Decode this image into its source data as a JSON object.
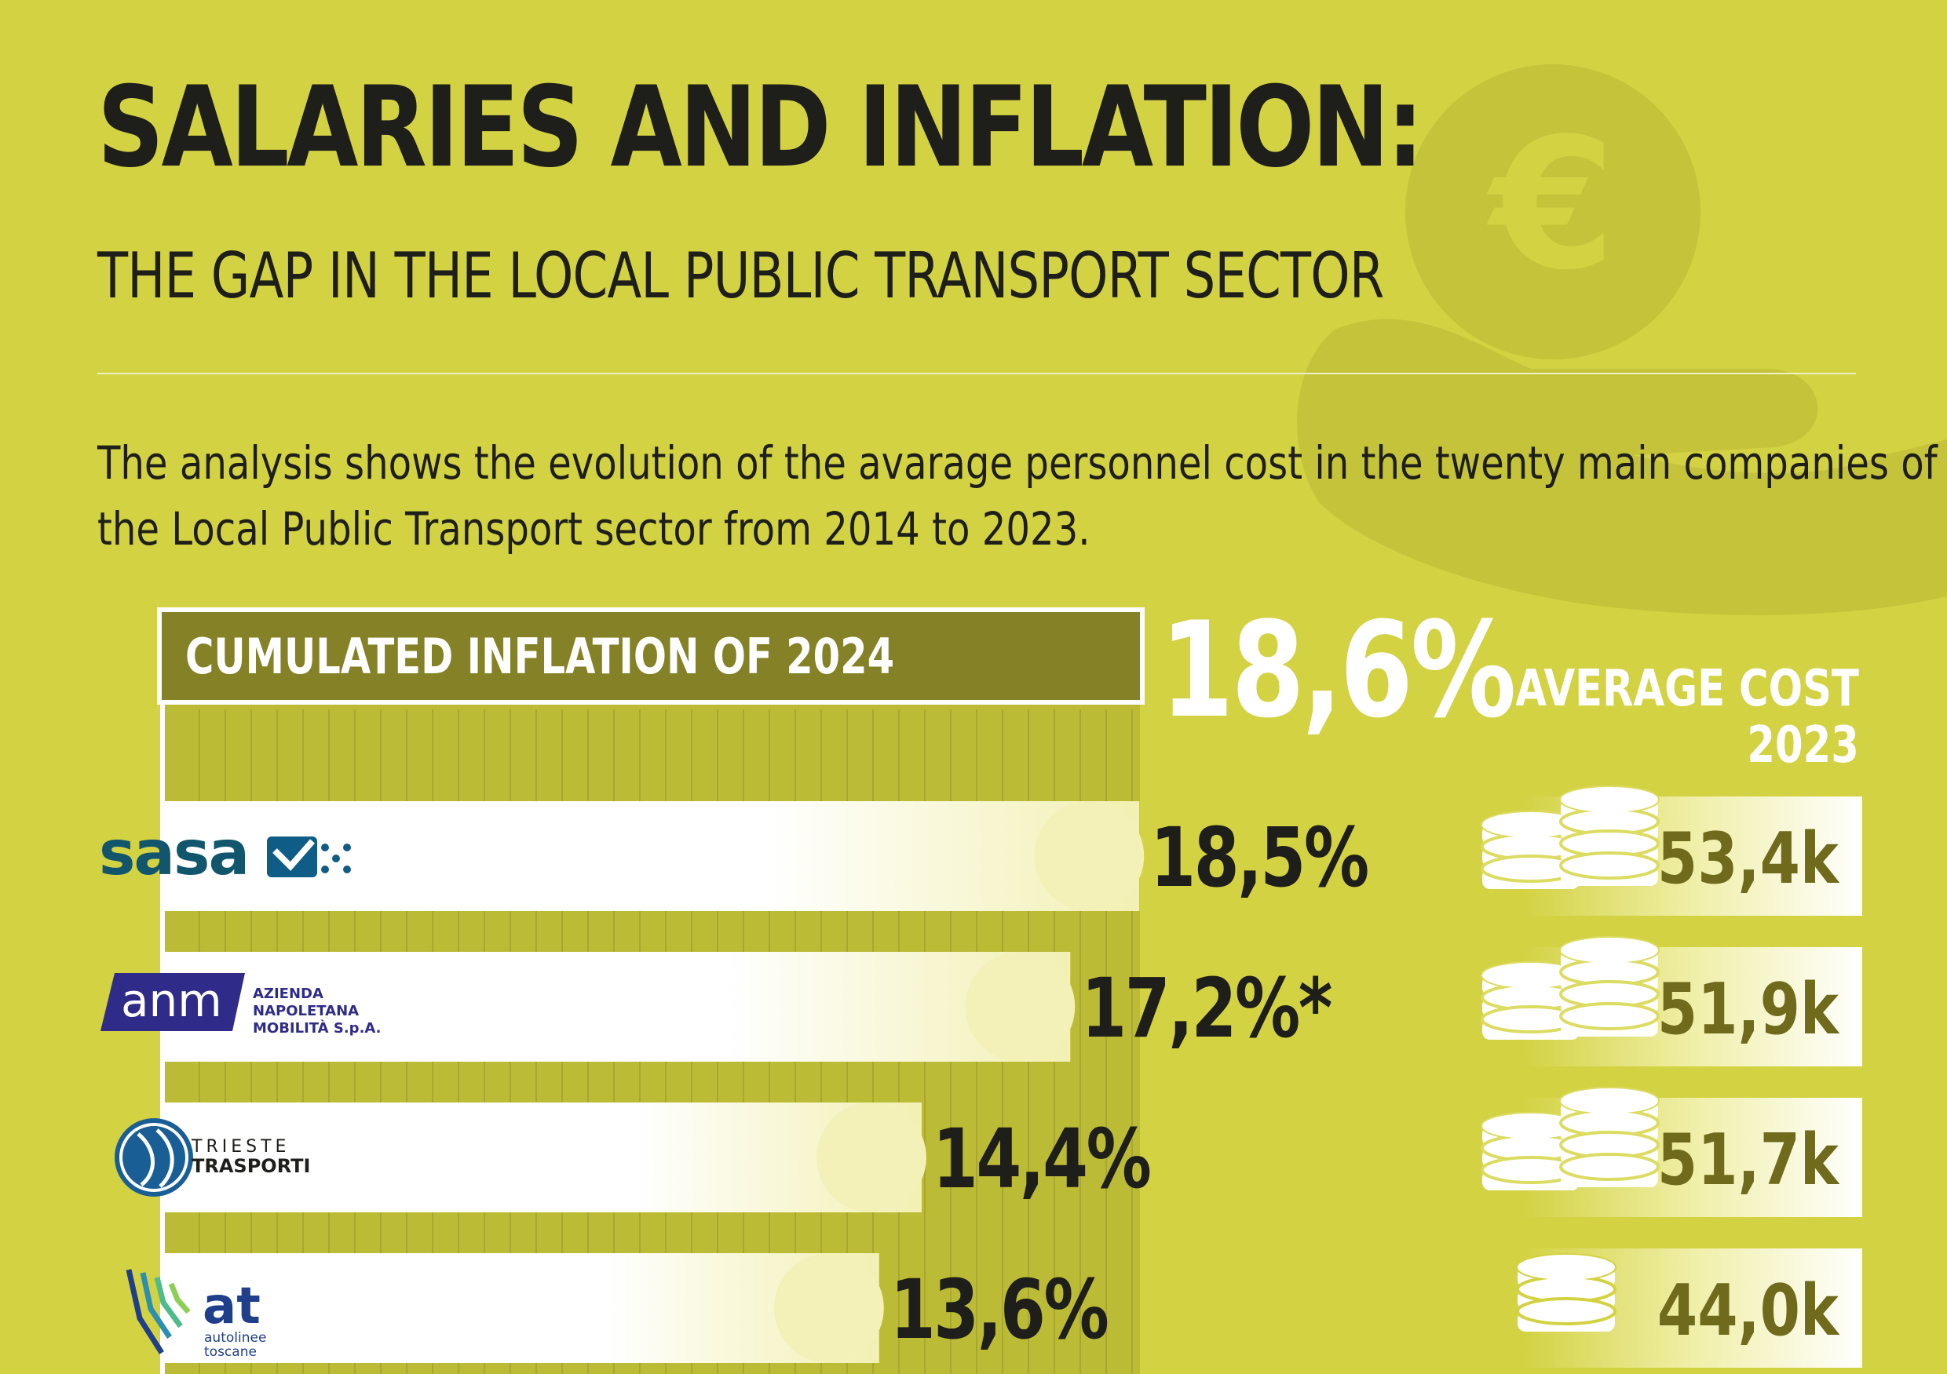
{
  "title": "SALARIES AND INFLATION:",
  "subtitle": "THE GAP IN THE LOCAL PUBLIC TRANSPORT SECTOR",
  "intro": "The analysis shows the evolution of the avarage personnel cost in the twenty main companies of the Local Public Transport sector from 2014 to 2023.",
  "icons": {
    "background": "hand-euro-coin-icon",
    "cost": "coin-stack-icon"
  },
  "colors": {
    "background": "#d3d243",
    "deco": "#bcba33",
    "inflation_box": "#858126",
    "value_text": "#6f6a1c",
    "dark_text": "#1e1e1a"
  },
  "chart_data": {
    "type": "bar",
    "title": "CUMULATED INFLATION OF 2024",
    "reference_value": 18.6,
    "reference_label": "18,6%",
    "unit": "%",
    "categories": [
      "SASA",
      "ANM",
      "Trieste Trasporti",
      "Autolinee Toscane"
    ],
    "values": [
      18.5,
      17.2,
      14.4,
      13.6
    ],
    "value_labels": [
      "18,5%",
      "17,2%*",
      "14,4%",
      "13,6%"
    ],
    "xlim": [
      0,
      18.6
    ],
    "secondary_series": {
      "name": "AVERAGE COST 2023",
      "header_lines": [
        "AVERAGE COST",
        "2023"
      ],
      "values": [
        53.4,
        51.9,
        51.7,
        44.0
      ],
      "labels": [
        "53,4k",
        "51,9k",
        "51,7k",
        "44,0k"
      ]
    },
    "logos": [
      {
        "name": "sasa",
        "text": "sasa"
      },
      {
        "name": "anm",
        "text": "anm",
        "sub": [
          "AZIENDA",
          "NAPOLETANA",
          "MOBILITÀ S.p.A."
        ]
      },
      {
        "name": "trieste-trasporti",
        "text": [
          "TRIESTE",
          "TRASPORTI"
        ]
      },
      {
        "name": "autolinee-toscane",
        "text": "at",
        "sub": [
          "autolinee",
          "toscane"
        ]
      }
    ]
  }
}
